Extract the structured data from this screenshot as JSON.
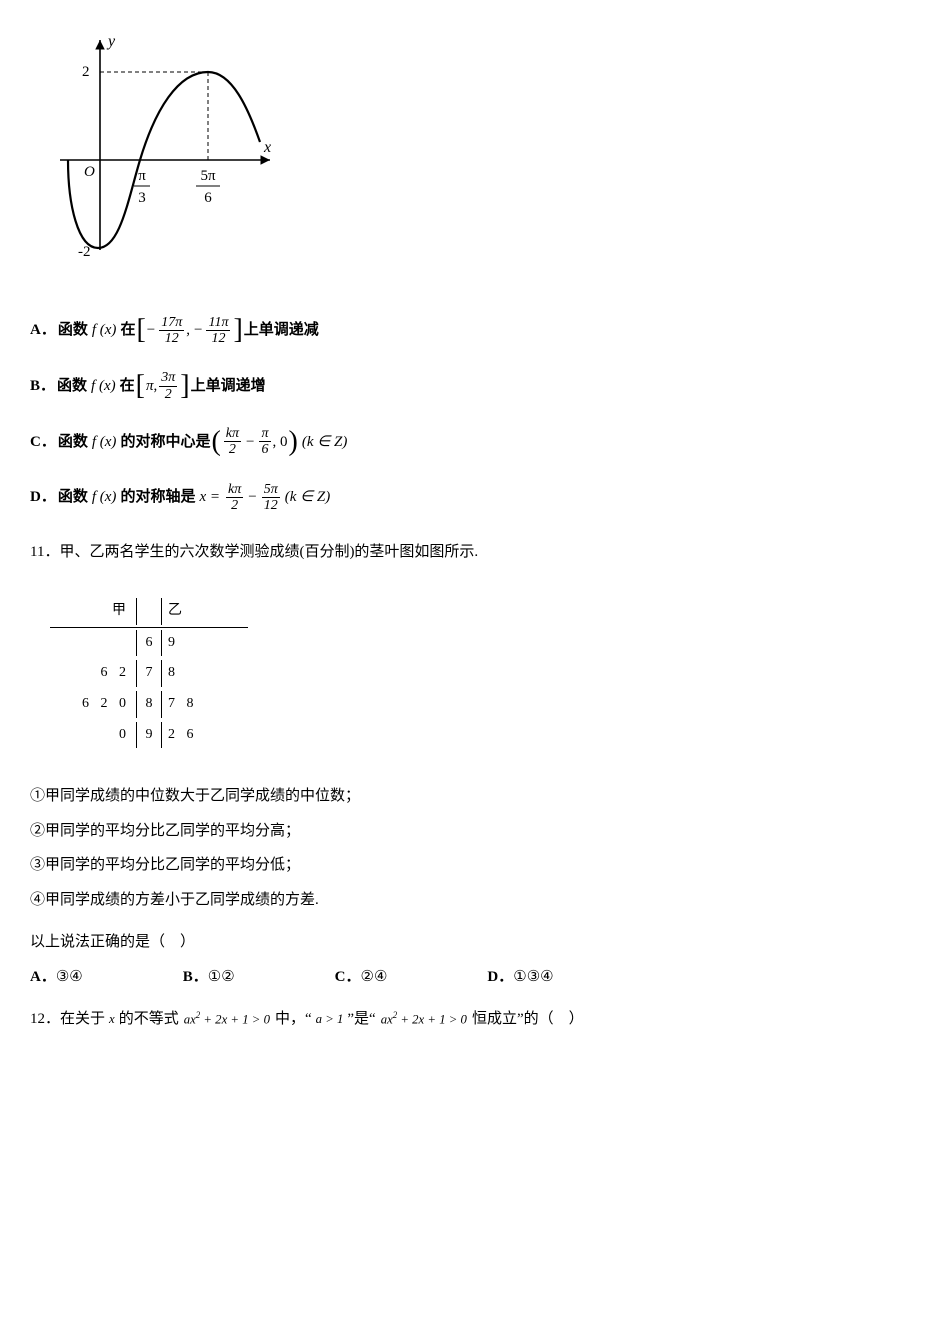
{
  "topGraph": {
    "yLabel": "y",
    "xLabel": "x",
    "origin": "O",
    "yTicks": [
      "2",
      "-2"
    ],
    "xTicksFrac": [
      {
        "num": "π",
        "den": "3"
      },
      {
        "num": "5π",
        "den": "6"
      }
    ],
    "colors": {
      "stroke": "#000000",
      "bg": "#ffffff"
    }
  },
  "optA": {
    "label": "A．",
    "pre": "函数",
    "fn": "f (x)",
    "mid": "在",
    "lfrac": {
      "neg": "−",
      "num": "17π",
      "den": "12"
    },
    "sep": ",",
    "rfrac": {
      "neg": "−",
      "num": "11π",
      "den": "12"
    },
    "post": "上单调递减"
  },
  "optB": {
    "label": "B．",
    "pre": "函数",
    "fn": "f (x)",
    "mid": "在",
    "l": "π",
    "sep": ",",
    "rfrac": {
      "num": "3π",
      "den": "2"
    },
    "post": "上单调递增"
  },
  "optC": {
    "label": "C．",
    "pre": "函数",
    "fn": "f (x)",
    "mid": "的对称中心是",
    "lfrac": {
      "num": "kπ",
      "den": "2"
    },
    "minus": "−",
    "rfrac": {
      "num": "π",
      "den": "6"
    },
    "zero": ", 0",
    "tail": "(k ∈ Z)"
  },
  "optD": {
    "label": "D．",
    "pre": "函数",
    "fn": "f (x)",
    "mid": "的对称轴是",
    "eq": "x =",
    "lfrac": {
      "num": "kπ",
      "den": "2"
    },
    "minus": "−",
    "rfrac": {
      "num": "5π",
      "den": "12"
    },
    "tail": "(k ∈ Z)"
  },
  "q11": {
    "text": "11．甲、乙两名学生的六次数学测验成绩(百分制)的茎叶图如图所示.",
    "stemLeaf": {
      "hdr": {
        "left": "甲",
        "right": "乙"
      },
      "rows": [
        {
          "left": "",
          "stem": "6",
          "right": "9"
        },
        {
          "left": "6 2",
          "stem": "7",
          "right": "8"
        },
        {
          "left": "6 2 0",
          "stem": "8",
          "right": "7 8"
        },
        {
          "left": "0",
          "stem": "9",
          "right": "2 6"
        }
      ]
    },
    "stmts": [
      "①甲同学成绩的中位数大于乙同学成绩的中位数；",
      "②甲同学的平均分比乙同学的平均分高；",
      "③甲同学的平均分比乙同学的平均分低；",
      "④甲同学成绩的方差小于乙同学成绩的方差."
    ],
    "ask": "以上说法正确的是（　）",
    "choices": [
      {
        "lbl": "A．",
        "v": "③④"
      },
      {
        "lbl": "B．",
        "v": "①②"
      },
      {
        "lbl": "C．",
        "v": "②④"
      },
      {
        "lbl": "D．",
        "v": "①③④"
      }
    ]
  },
  "q12": {
    "pre": "12．在关于",
    "x": "x",
    "t1": "的不等式",
    "expr1": "ax² + 2x + 1 > 0",
    "t2": "中，“",
    "cond": "a > 1",
    "t3": "”是“",
    "expr2": "ax² + 2x + 1 > 0",
    "t4": "恒成立”的（　）"
  }
}
